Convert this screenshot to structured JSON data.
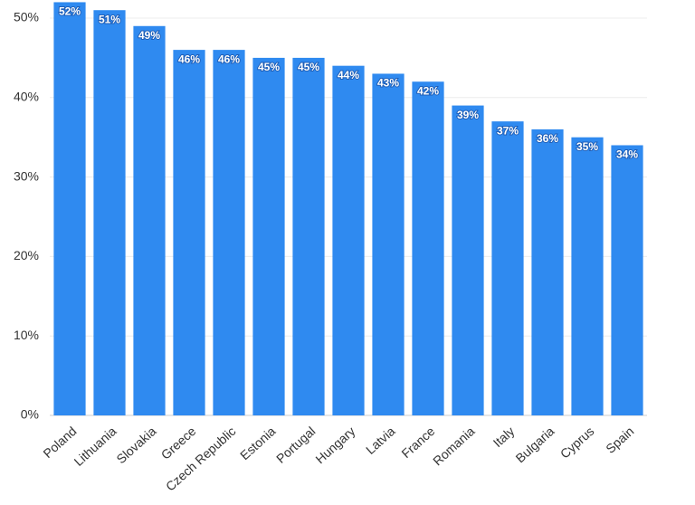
{
  "chart_data": {
    "type": "bar",
    "categories": [
      "Poland",
      "Lithuania",
      "Slovakia",
      "Greece",
      "Czech Republic",
      "Estonia",
      "Portugal",
      "Hungary",
      "Latvia",
      "France",
      "Romania",
      "Italy",
      "Bulgaria",
      "Cyprus",
      "Spain"
    ],
    "values": [
      52,
      51,
      49,
      46,
      46,
      45,
      45,
      44,
      43,
      42,
      39,
      37,
      36,
      35,
      34
    ],
    "value_labels": [
      "52%",
      "51%",
      "49%",
      "46%",
      "46%",
      "45%",
      "45%",
      "44%",
      "43%",
      "42%",
      "39%",
      "37%",
      "36%",
      "35%",
      "34%"
    ],
    "color": "#2f8af0",
    "ylim": [
      0,
      50
    ],
    "yticks": [
      {
        "value": 0,
        "label": "0%"
      },
      {
        "value": 10,
        "label": "10%"
      },
      {
        "value": 20,
        "label": "20%"
      },
      {
        "value": 30,
        "label": "30%"
      },
      {
        "value": 40,
        "label": "40%"
      },
      {
        "value": 50,
        "label": "50%"
      }
    ],
    "grid": true
  }
}
